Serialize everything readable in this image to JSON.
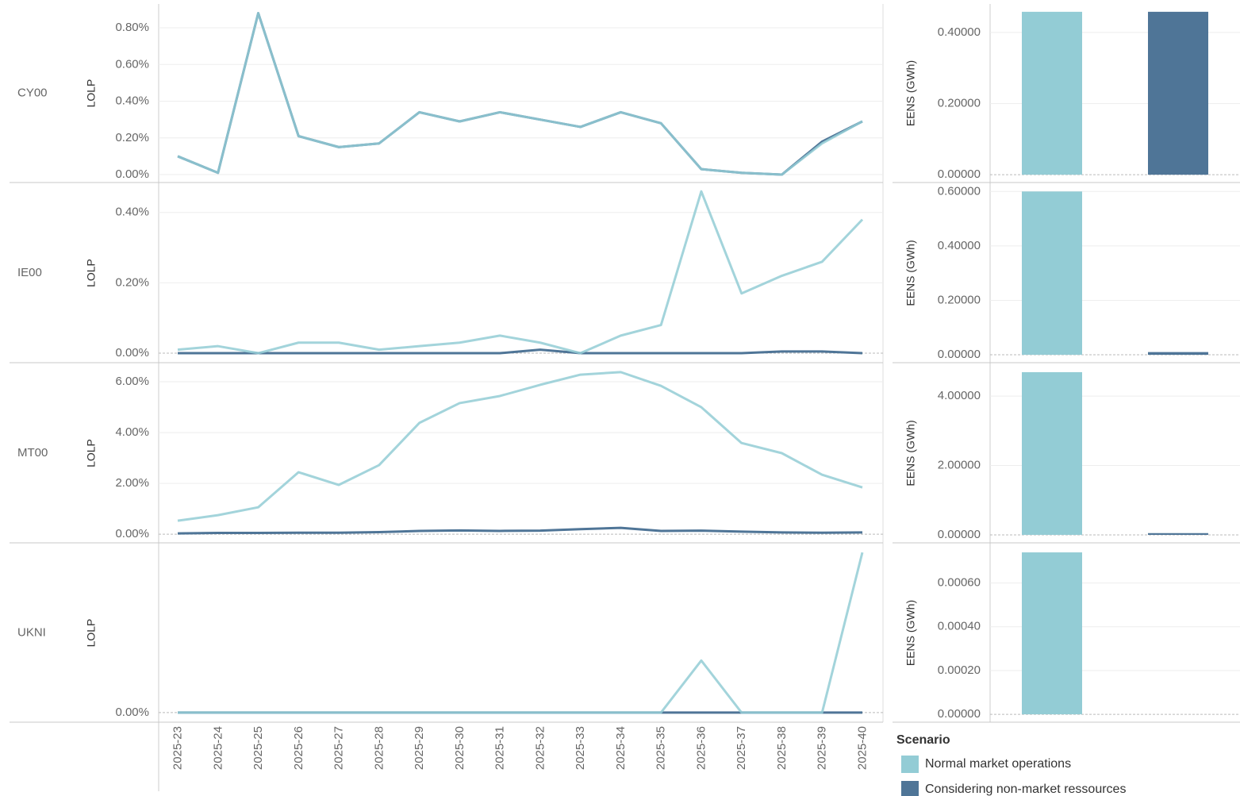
{
  "chart_data": [
    {
      "type": "line",
      "row_label": "CY00",
      "y_label": "LOLP",
      "ylim": [
        -0.043,
        0.93
      ],
      "yticks": [
        {
          "value": 0,
          "label": "0.00%"
        },
        {
          "value": 0.2,
          "label": "0.20%"
        },
        {
          "value": 0.4,
          "label": "0.40%"
        },
        {
          "value": 0.6,
          "label": "0.60%"
        },
        {
          "value": 0.8,
          "label": "0.80%"
        }
      ],
      "series": [
        {
          "color": "#4f7597",
          "values": [
            0.1,
            0.01,
            0.88,
            0.21,
            0.15,
            0.17,
            0.34,
            0.29,
            0.34,
            0.3,
            0.26,
            0.34,
            0.28,
            0.03,
            0.01,
            0.0,
            0.18,
            0.29
          ]
        },
        {
          "color": "#93ccd5",
          "values": [
            0.1,
            0.01,
            0.88,
            0.21,
            0.15,
            0.17,
            0.34,
            0.29,
            0.34,
            0.3,
            0.26,
            0.34,
            0.28,
            0.03,
            0.01,
            0.0,
            0.17,
            0.29
          ]
        }
      ]
    },
    {
      "type": "bar",
      "y_label": "EENS (GWh)",
      "ylim": [
        -0.022,
        0.48
      ],
      "yticks": [
        {
          "value": 0,
          "label": "0.00000"
        },
        {
          "value": 0.2,
          "label": "0.20000"
        },
        {
          "value": 0.4,
          "label": "0.40000"
        }
      ],
      "series": [
        {
          "color": "#93ccd5",
          "values": [
            0.458
          ]
        },
        {
          "color": "#4f7597",
          "values": [
            0.458
          ]
        }
      ]
    },
    {
      "type": "line",
      "row_label": "IE00",
      "y_label": "LOLP",
      "ylim": [
        -0.027,
        0.483
      ],
      "yticks": [
        {
          "value": 0,
          "label": "0.00%"
        },
        {
          "value": 0.2,
          "label": "0.20%"
        },
        {
          "value": 0.4,
          "label": "0.40%"
        }
      ],
      "series": [
        {
          "color": "#4f7597",
          "values": [
            0,
            0,
            0,
            0,
            0,
            0,
            0,
            0,
            0,
            0.01,
            0,
            0,
            0,
            0,
            0,
            0.005,
            0.005,
            0
          ]
        },
        {
          "color": "#93ccd5",
          "values": [
            0.01,
            0.02,
            0,
            0.03,
            0.03,
            0.01,
            0.02,
            0.03,
            0.05,
            0.03,
            0,
            0.05,
            0.08,
            0.46,
            0.17,
            0.22,
            0.26,
            0.38
          ]
        }
      ]
    },
    {
      "type": "bar",
      "y_label": "EENS (GWh)",
      "ylim": [
        -0.029,
        0.63
      ],
      "yticks": [
        {
          "value": 0,
          "label": "0.00000"
        },
        {
          "value": 0.2,
          "label": "0.20000"
        },
        {
          "value": 0.4,
          "label": "0.40000"
        },
        {
          "value": 0.6,
          "label": "0.60000"
        }
      ],
      "series": [
        {
          "color": "#93ccd5",
          "values": [
            0.6
          ]
        },
        {
          "color": "#4f7597",
          "values": [
            0.01
          ]
        }
      ]
    },
    {
      "type": "line",
      "row_label": "MT00",
      "y_label": "LOLP",
      "ylim": [
        -0.34,
        6.72
      ],
      "yticks": [
        {
          "value": 0,
          "label": "0.00%"
        },
        {
          "value": 2,
          "label": "2.00%"
        },
        {
          "value": 4,
          "label": "4.00%"
        },
        {
          "value": 6,
          "label": "6.00%"
        }
      ],
      "series": [
        {
          "color": "#4f7597",
          "values": [
            0.03,
            0.05,
            0.05,
            0.06,
            0.06,
            0.08,
            0.13,
            0.15,
            0.13,
            0.14,
            0.2,
            0.25,
            0.13,
            0.14,
            0.1,
            0.07,
            0.06,
            0.07
          ]
        },
        {
          "color": "#93ccd5",
          "values": [
            0.53,
            0.75,
            1.06,
            2.44,
            1.94,
            2.72,
            4.38,
            5.16,
            5.44,
            5.88,
            6.28,
            6.38,
            5.84,
            5.0,
            3.59,
            3.19,
            2.34,
            1.84
          ]
        }
      ]
    },
    {
      "type": "bar",
      "y_label": "EENS (GWh)",
      "ylim": [
        -0.23,
        4.94
      ],
      "yticks": [
        {
          "value": 0,
          "label": "0.00000"
        },
        {
          "value": 2,
          "label": "2.00000"
        },
        {
          "value": 4,
          "label": "4.00000"
        }
      ],
      "series": [
        {
          "color": "#93ccd5",
          "values": [
            4.69
          ]
        },
        {
          "color": "#4f7597",
          "values": [
            0.05
          ]
        }
      ]
    },
    {
      "type": "line",
      "row_label": "UKNI",
      "y_label": "LOLP",
      "ylim": [
        -0.0024,
        0.0422
      ],
      "categories": [
        "2025-23",
        "2025-24",
        "2025-25",
        "2025-26",
        "2025-27",
        "2025-28",
        "2025-29",
        "2025-30",
        "2025-31",
        "2025-32",
        "2025-33",
        "2025-34",
        "2025-35",
        "2025-36",
        "2025-37",
        "2025-38",
        "2025-39",
        "2025-40"
      ],
      "yticks": [
        {
          "value": 0,
          "label": "0.00%"
        }
      ],
      "series": [
        {
          "color": "#4f7597",
          "values": [
            0,
            0,
            0,
            0,
            0,
            0,
            0,
            0,
            0,
            0,
            0,
            0,
            0,
            0,
            0,
            0,
            0,
            0
          ]
        },
        {
          "color": "#93ccd5",
          "values": [
            0,
            0,
            0,
            0,
            0,
            0,
            0,
            0,
            0,
            0,
            0,
            0,
            0,
            0.013,
            0,
            0,
            0,
            0.04
          ]
        }
      ]
    },
    {
      "type": "bar",
      "y_label": "EENS (GWh)",
      "ylim": [
        -3.6e-05,
        0.00078
      ],
      "legend_title": "Scenario",
      "yticks": [
        {
          "value": 0,
          "label": "0.00000"
        },
        {
          "value": 0.0002,
          "label": "0.00020"
        },
        {
          "value": 0.0004,
          "label": "0.00040"
        },
        {
          "value": 0.0006,
          "label": "0.00060"
        }
      ],
      "series": [
        {
          "name": "Normal market operations",
          "color": "#93ccd5",
          "values": [
            0.00074
          ]
        },
        {
          "name": "Considering non-market ressources",
          "color": "#4f7597",
          "values": [
            0
          ]
        }
      ]
    }
  ]
}
